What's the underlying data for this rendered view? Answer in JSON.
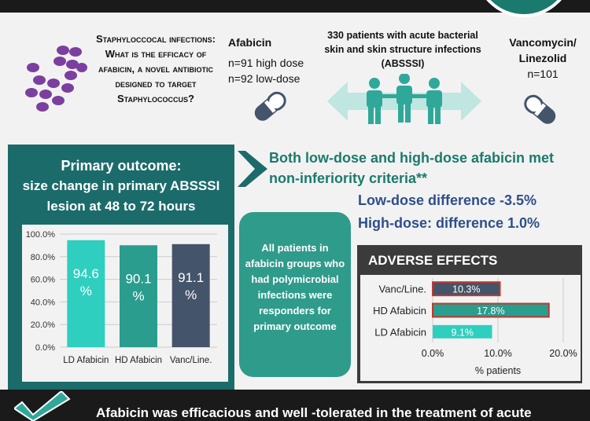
{
  "header": {
    "question": "Staphyloccocal infections: What is the efficacy of afabicin, a novel antibiotic designed to target Staphylococcus?",
    "afabicin": {
      "title": "Afabicin",
      "high_dose": "n=91 high dose",
      "low_dose": "n=92 low-dose"
    },
    "patients": "330 patients with acute bacterial skin and skin structure infections (ABSSSI)",
    "comparator": {
      "title": "Vancomycin/ Linezolid",
      "n": "n=101"
    }
  },
  "primary": {
    "title_line1": "Primary outcome:",
    "title_line2": "size change in primary ABSSSI lesion at 48 to 72 hours"
  },
  "findings": {
    "headline": "Both low-dose and high-dose afabicin met non-inferiority criteria**",
    "ld_diff": "Low-dose difference -3.5%",
    "hd_diff": "High-dose: difference 1.0%"
  },
  "polymicrobial": "All patients in afabicin groups who had polymicrobial infections were responders for primary outcome",
  "adverse": {
    "title": "ADVERSE EFFECTS"
  },
  "footer": {
    "text": "Afabicin was efficacious and well -tolerated in the treatment of acute"
  },
  "colors": {
    "teal_dark": "#1c6b6b",
    "teal_light": "#2fcfbf",
    "teal_mid": "#2f9b8b",
    "slate": "#44546a",
    "accent_red": "#c0392b",
    "blue": "#2e4f8c"
  },
  "chart_data": [
    {
      "type": "bar",
      "categories": [
        "LD Afabicin",
        "HD Afabicin",
        "Vanc/Line."
      ],
      "values": [
        94.6,
        90.1,
        91.1
      ],
      "data_labels": [
        "94.6 %",
        "90.1 %",
        "91.1 %"
      ],
      "yticks": [
        "0.0%",
        "20.0%",
        "40.0%",
        "60.0%",
        "80.0%",
        "100.0%"
      ],
      "ylim": [
        0,
        100
      ],
      "colors": [
        "#2fcfbf",
        "#2a9d8f",
        "#44546a"
      ]
    },
    {
      "type": "bar",
      "orientation": "horizontal",
      "categories": [
        "Vanc/Line.",
        "HD Afabicin",
        "LD Afabicin"
      ],
      "values": [
        10.3,
        17.8,
        9.1
      ],
      "data_labels": [
        "10.3%",
        "17.8%",
        "9.1%"
      ],
      "xticks": [
        "0.0%",
        "10.0%",
        "20.0%"
      ],
      "xlim": [
        0,
        20
      ],
      "xlabel": "% patients",
      "colors": [
        "#44546a",
        "#2a9d8f",
        "#2fcfbf"
      ]
    }
  ]
}
